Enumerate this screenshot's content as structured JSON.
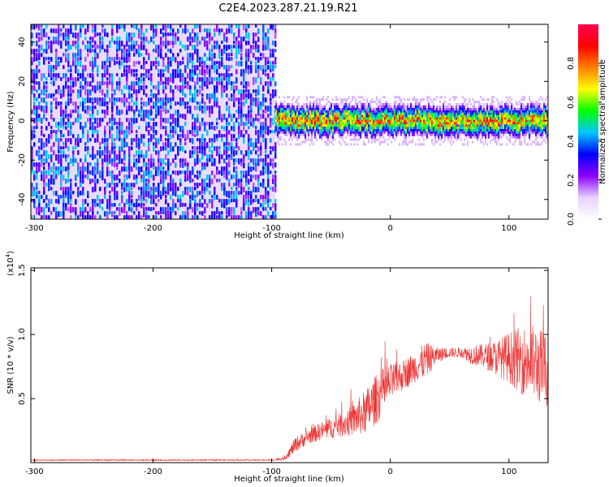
{
  "chart_data": [
    {
      "type": "heatmap",
      "title": "C2E4.2023.287.21.19.R21",
      "xlabel": "Height of straight line (km)",
      "ylabel": "Frequency (Hz)",
      "xlim": [
        -303,
        133
      ],
      "ylim": [
        -50,
        49
      ],
      "x_ticks": [
        -300,
        -200,
        -100,
        0,
        100
      ],
      "y_ticks": [
        -40,
        -20,
        0,
        20,
        40
      ],
      "colorbar": {
        "label": "Normalized spectral amplitude",
        "range": [
          0,
          1
        ],
        "ticks": [
          "0.0",
          "0.2",
          "0.4",
          "0.6",
          "0.8"
        ],
        "colors": [
          "#ffffff",
          "#e6d2ff",
          "#8c00ff",
          "#0000ff",
          "#00c8ff",
          "#00ff00",
          "#ffff00",
          "#ff8000",
          "#ff0000",
          "#ff0050"
        ]
      },
      "regions": [
        {
          "x_range": [
            -303,
            -97
          ],
          "description_values": {
            "band_hz": [
              -50,
              49
            ],
            "amplitude": [
              0.05,
              0.35
            ]
          }
        },
        {
          "x_range": [
            -97,
            133
          ],
          "description_values": {
            "band_hz": [
              -10,
              10
            ],
            "peak_center_hz": 0,
            "amplitude": [
              0.3,
              1.0
            ]
          }
        }
      ],
      "grid": false
    },
    {
      "type": "line",
      "xlabel": "Height of straight line (km)",
      "ylabel": "SNR (10 * v/v)",
      "y_multiplier": "(x10",
      "y_multiplier_exp": "4",
      "y_multiplier_close": ")",
      "xlim": [
        -303,
        133
      ],
      "ylim": [
        0,
        1.52
      ],
      "x_ticks": [
        -300,
        -200,
        -100,
        0,
        100
      ],
      "y_ticks": [
        0.5,
        1.0,
        1.5
      ],
      "y_tick_labels": [
        "0.5",
        "1.0",
        "1.5"
      ],
      "series": [
        {
          "color": "#ee3333",
          "x": [
            -303,
            -200,
            -100,
            -90,
            -85,
            -80,
            -70,
            -60,
            -50,
            -40,
            -30,
            -20,
            -10,
            0,
            10,
            20,
            30,
            40,
            50,
            60,
            70,
            80,
            90,
            100,
            110,
            120,
            133
          ],
          "y": [
            0.02,
            0.02,
            0.02,
            0.03,
            0.08,
            0.14,
            0.2,
            0.24,
            0.27,
            0.3,
            0.34,
            0.4,
            0.52,
            0.62,
            0.68,
            0.74,
            0.8,
            0.84,
            0.86,
            0.86,
            0.84,
            0.83,
            0.82,
            0.82,
            0.8,
            0.78,
            0.72
          ],
          "noise": [
            0.005,
            0.005,
            0.005,
            0.01,
            0.04,
            0.06,
            0.06,
            0.07,
            0.08,
            0.1,
            0.13,
            0.18,
            0.2,
            0.15,
            0.12,
            0.12,
            0.14,
            0.06,
            0.04,
            0.04,
            0.08,
            0.1,
            0.14,
            0.2,
            0.26,
            0.3,
            0.3
          ]
        }
      ],
      "grid": false
    }
  ]
}
